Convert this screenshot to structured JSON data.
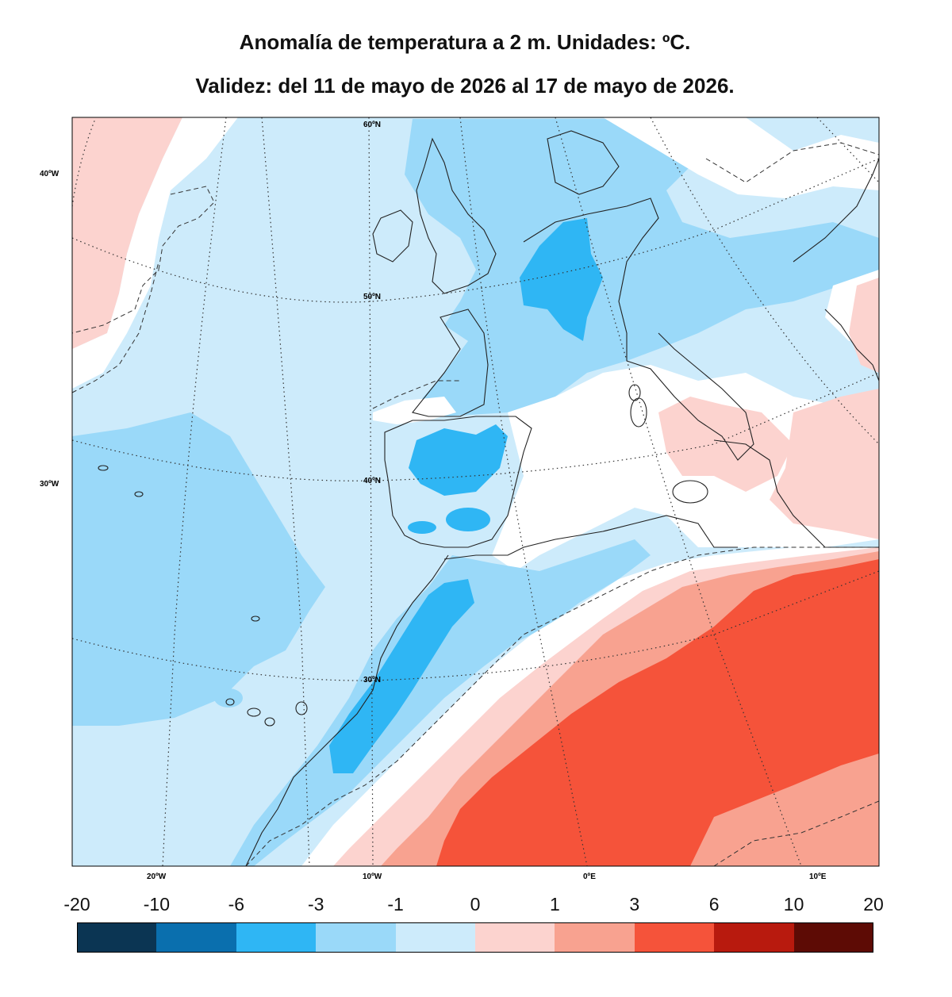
{
  "title": {
    "line1": "Anomalía de temperatura a 2 m. Unidades: ºC.",
    "line2": "Validez: del 11 de mayo de 2026 al 17 de mayo de 2026."
  },
  "map": {
    "lat_labels": [
      "60ºN",
      "50ºN",
      "40ºN",
      "30ºN"
    ],
    "lon_labels_bottom": [
      "20ºW",
      "10ºW",
      "0ºE",
      "10ºE"
    ],
    "lon_labels_left": [
      "40ºW",
      "30ºW"
    ]
  },
  "colorbar": {
    "ticks": [
      "-20",
      "-10",
      "-6",
      "-3",
      "-1",
      "0",
      "1",
      "3",
      "6",
      "10",
      "20"
    ],
    "colors": [
      "#0b3553",
      "#0a6fae",
      "#2fb6f4",
      "#9ad9f9",
      "#cdebfb",
      "#fcd3cf",
      "#f8a290",
      "#f5533a",
      "#b81a0e",
      "#5d0b05"
    ]
  }
}
